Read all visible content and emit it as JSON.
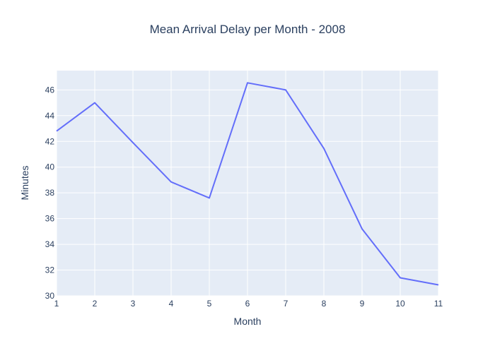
{
  "chart_data": {
    "type": "line",
    "title": "Mean Arrival Delay per Month - 2008",
    "xlabel": "Month",
    "ylabel": "Minutes",
    "x": [
      1,
      2,
      3,
      4,
      5,
      6,
      7,
      8,
      9,
      10,
      11
    ],
    "series": [
      {
        "name": "Mean Arrival Delay",
        "values": [
          42.8,
          45.0,
          41.9,
          38.85,
          37.6,
          46.55,
          46.0,
          41.45,
          35.2,
          31.4,
          30.85
        ],
        "color": "#636efa"
      }
    ],
    "xlim": [
      1,
      11
    ],
    "ylim": [
      30,
      47.5
    ],
    "x_ticks": [
      1,
      2,
      3,
      4,
      5,
      6,
      7,
      8,
      9,
      10,
      11
    ],
    "y_ticks": [
      30,
      32,
      34,
      36,
      38,
      40,
      42,
      44,
      46
    ],
    "grid": true,
    "plot_bg": "#e5ecf6",
    "grid_color": "#ffffff",
    "text_color": "#2a3f5f"
  }
}
